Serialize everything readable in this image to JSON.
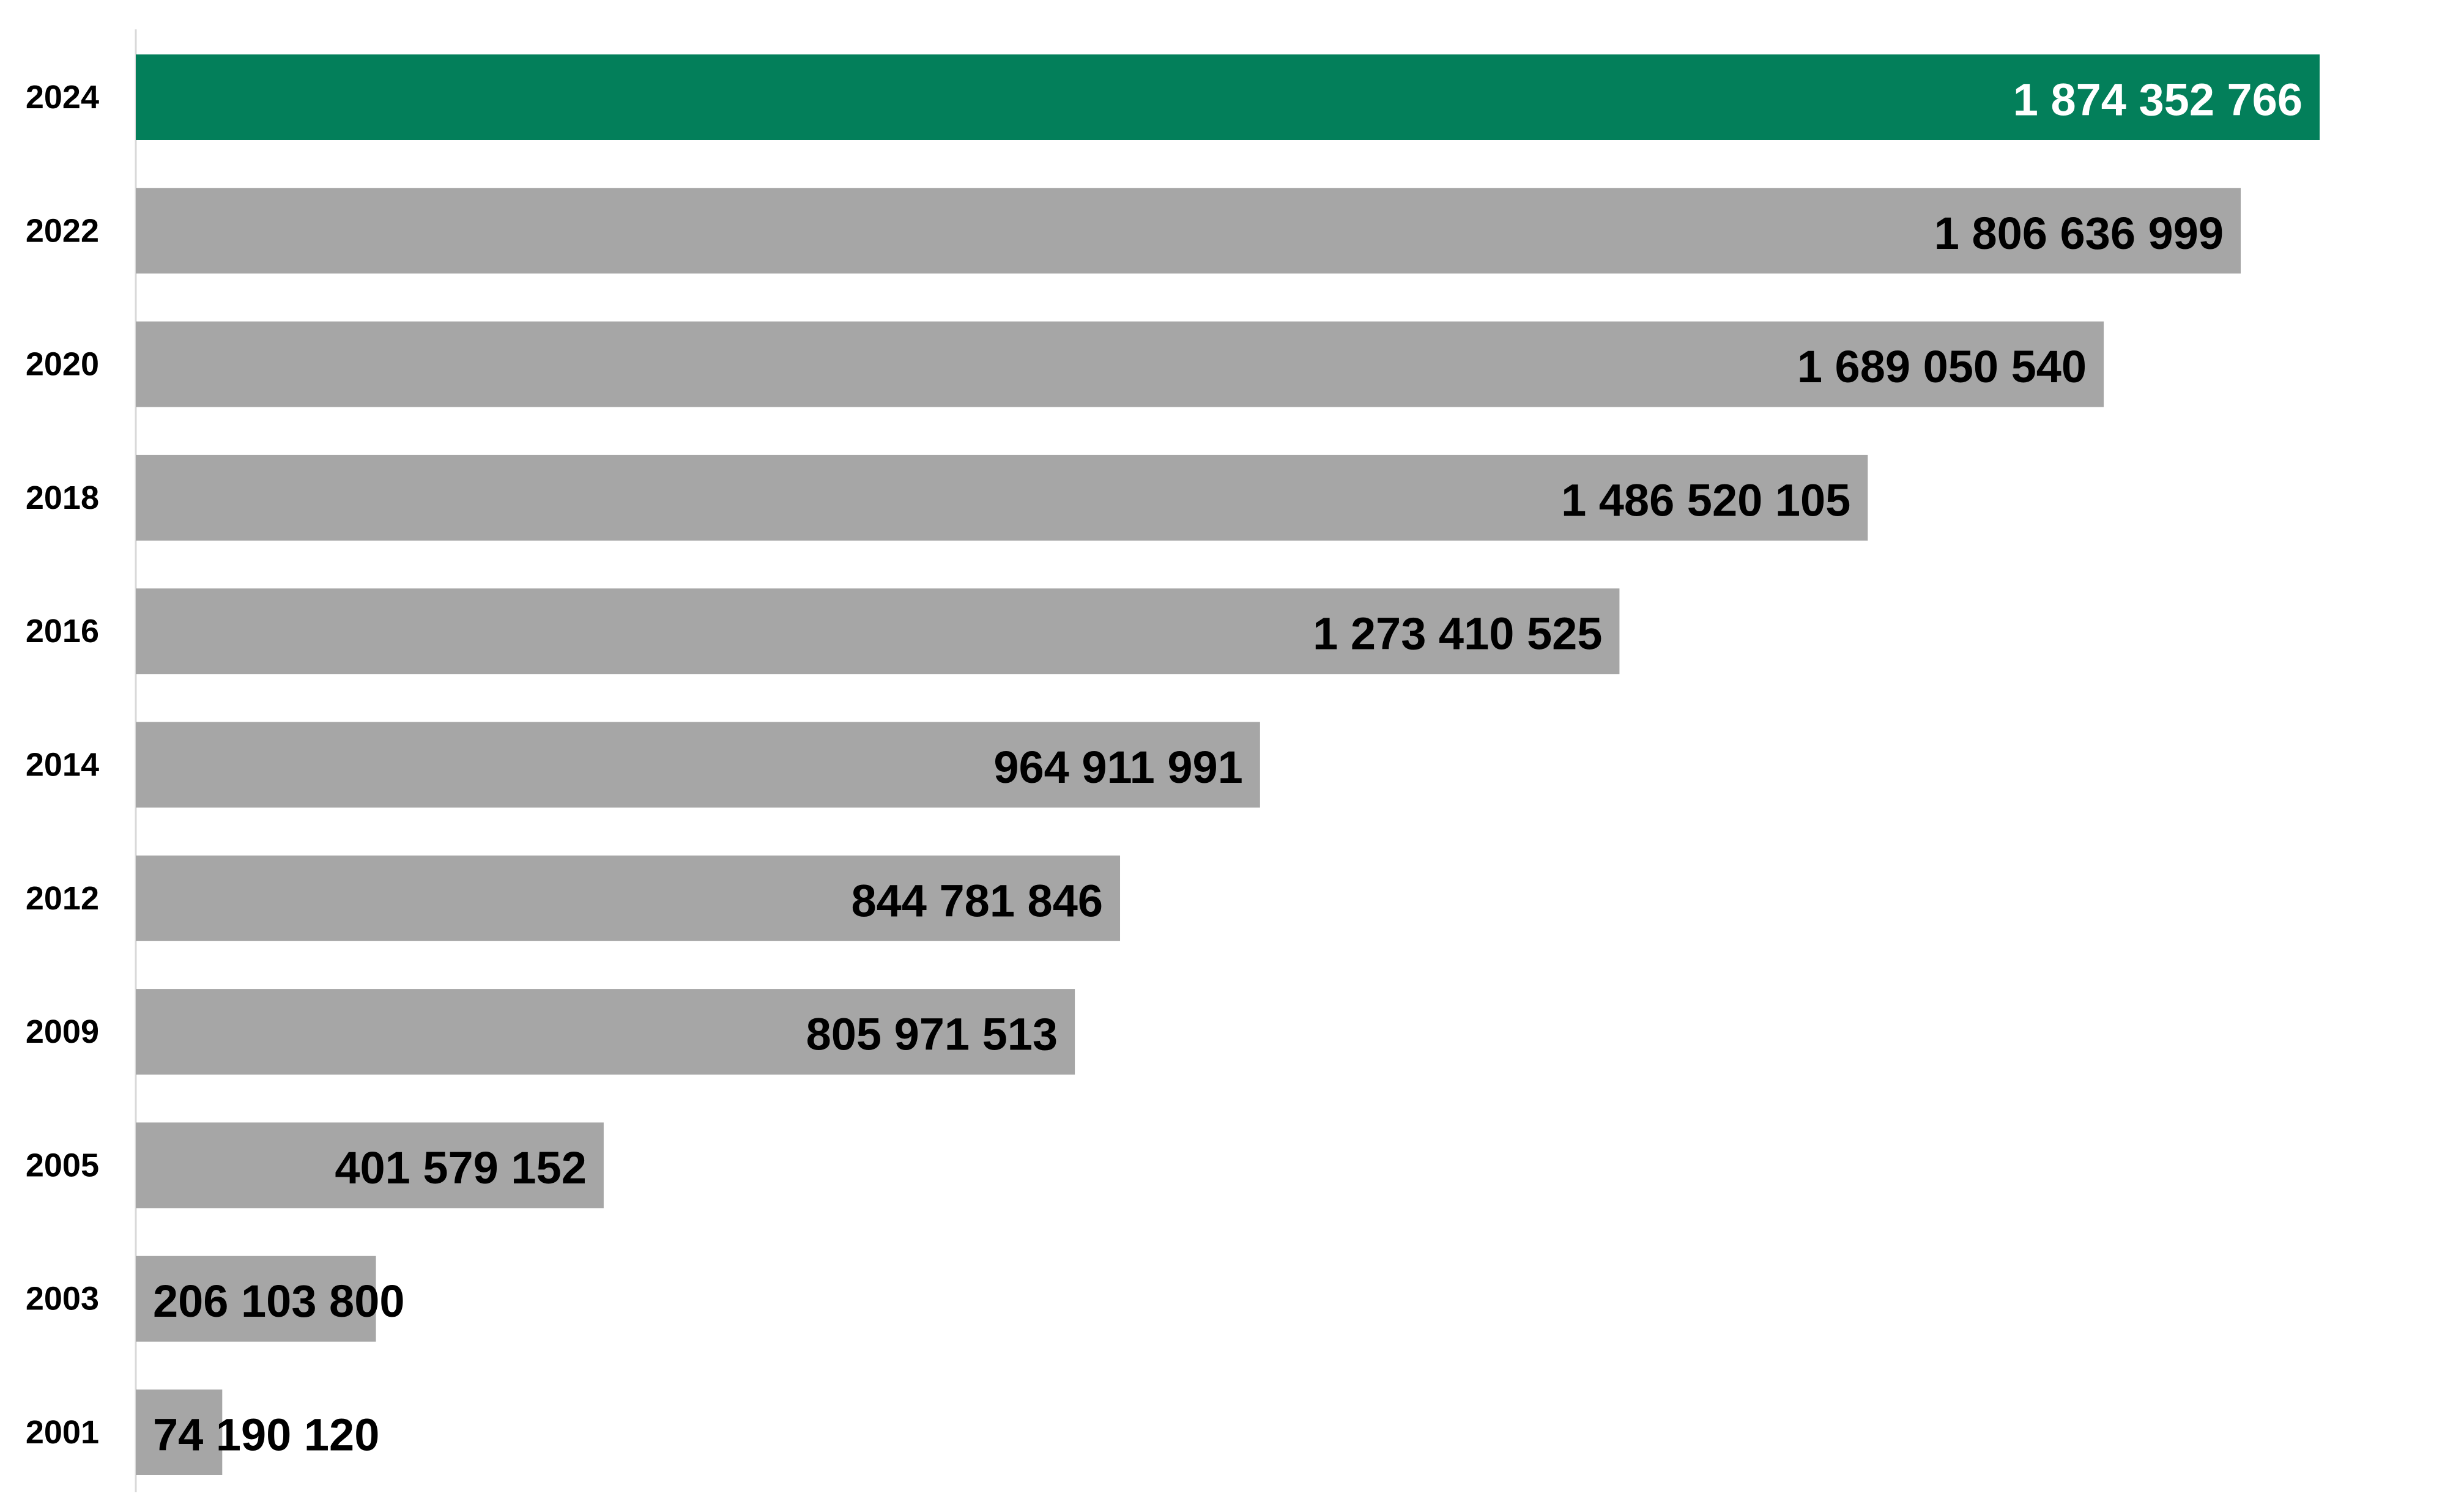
{
  "chart_data": {
    "type": "bar",
    "orientation": "horizontal",
    "categories": [
      "2024",
      "2022",
      "2020",
      "2018",
      "2016",
      "2014",
      "2012",
      "2009",
      "2005",
      "2003",
      "2001"
    ],
    "values": [
      1874352766,
      1806636999,
      1689050540,
      1486520105,
      1273410525,
      964911991,
      844781846,
      805971513,
      401579152,
      206103800,
      74190120
    ],
    "value_labels": [
      "1 874 352 766",
      "1 806 636 999",
      "1 689 050 540",
      "1 486 520 105",
      "1 273 410 525",
      "964 911 991",
      "844 781 846",
      "805 971 513",
      "401 579 152",
      "206 103 800",
      "74 190 120"
    ],
    "highlight_index": 0,
    "colors": {
      "highlight": "#037F5A",
      "default": "#A6A6A6",
      "axis": "#D9D9D9",
      "label_on_highlight": "#FFFFFF",
      "label_default": "#000000"
    },
    "title": "",
    "xlabel": "",
    "ylabel": "",
    "grid": false,
    "legend": "none"
  }
}
